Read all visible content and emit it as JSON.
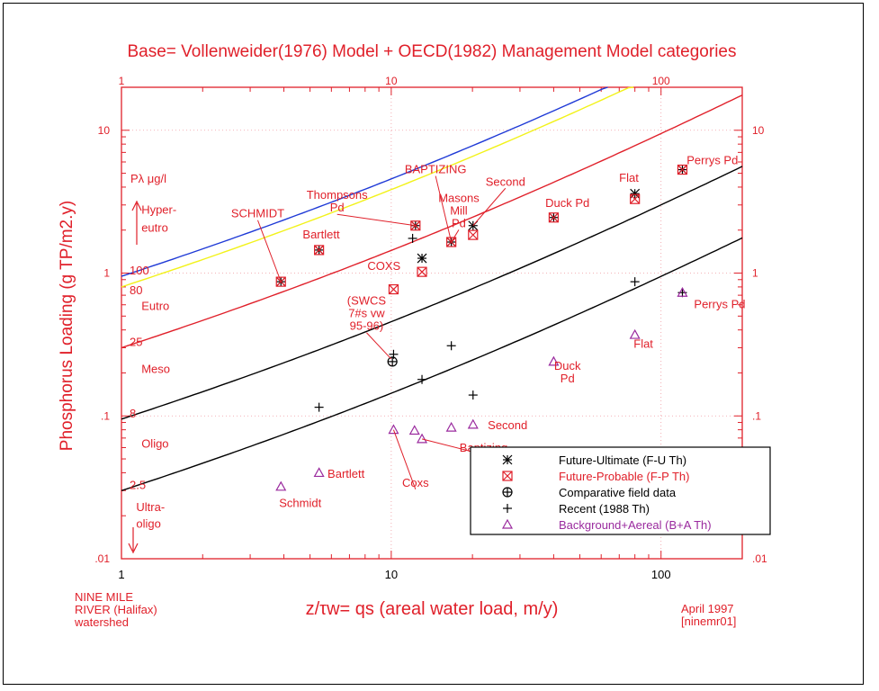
{
  "chart_data": {
    "type": "scatter",
    "title": "Base= Vollenweider(1976) Model + OECD(1982) Management Model categories",
    "xlabel": "z/τw= qs (areal water load, m/y)",
    "ylabel": "Phosphorus Loading (g TP/m2.y)",
    "xlim": [
      1,
      200
    ],
    "ylim": [
      0.01,
      20
    ],
    "x_scale": "log",
    "y_scale": "log",
    "x_ticks": [
      "1",
      "10",
      "100"
    ],
    "x_ticks_top": [
      "1",
      "10",
      "100"
    ],
    "y_ticks": [
      ".01",
      ".1",
      "1",
      "10"
    ],
    "y_ticks_right": [
      ".01",
      ".1",
      "1",
      "10"
    ],
    "curves": [
      {
        "name": "100",
        "color": "#1f3ad6",
        "p_ug_l": 100,
        "label_value": 0.95
      },
      {
        "name": "80",
        "color": "#f2f21a",
        "p_ug_l": 80,
        "label_value": 0.8
      },
      {
        "name": "25",
        "color": "#e0202a",
        "p_ug_l": 25,
        "label_value": 0.3
      },
      {
        "name": "8",
        "color": "#000000",
        "p_ug_l": 8,
        "label_value": 0.095
      },
      {
        "name": "2.5",
        "color": "#000000",
        "p_ug_l": 2.5,
        "label_value": 0.03
      }
    ],
    "trophic_labels": [
      {
        "text": "Hyper-",
        "x": 1.15,
        "y": 2.6
      },
      {
        "text": "eutro",
        "x": 1.15,
        "y": 1.95
      },
      {
        "text": "Eutro",
        "x": 1.15,
        "y": 0.55
      },
      {
        "text": "Meso",
        "x": 1.15,
        "y": 0.2
      },
      {
        "text": "Oligo",
        "x": 1.15,
        "y": 0.06
      },
      {
        "text": "Ultra-",
        "x": 1.1,
        "y": 0.0215
      },
      {
        "text": "oligo",
        "x": 1.1,
        "y": 0.0165
      }
    ],
    "concentration_header": "Pλ μg/l",
    "series": [
      {
        "name": "Future-Ultimate (F-U Th)",
        "marker": "asterisk",
        "color": "#000000",
        "points": [
          {
            "x": 5.4,
            "y": 1.45
          },
          {
            "x": 12.3,
            "y": 2.15
          },
          {
            "x": 13.0,
            "y": 1.27
          },
          {
            "x": 16.7,
            "y": 1.65
          },
          {
            "x": 20.1,
            "y": 2.15
          },
          {
            "x": 40,
            "y": 2.45
          },
          {
            "x": 80,
            "y": 3.6
          },
          {
            "x": 120,
            "y": 5.3
          },
          {
            "x": 3.9,
            "y": 0.87
          }
        ]
      },
      {
        "name": "Future-Probable (F-P Th)",
        "marker": "boxed-x",
        "color": "#e0202a",
        "points": [
          {
            "x": 3.9,
            "y": 0.87
          },
          {
            "x": 5.4,
            "y": 1.45
          },
          {
            "x": 10.2,
            "y": 0.77
          },
          {
            "x": 12.3,
            "y": 2.15
          },
          {
            "x": 13.0,
            "y": 1.02
          },
          {
            "x": 16.7,
            "y": 1.65
          },
          {
            "x": 20.1,
            "y": 1.85
          },
          {
            "x": 40,
            "y": 2.45
          },
          {
            "x": 80,
            "y": 3.3
          },
          {
            "x": 120,
            "y": 5.3
          }
        ]
      },
      {
        "name": "Comparative field data",
        "marker": "circle-plus",
        "color": "#000000",
        "points": [
          {
            "x": 10.1,
            "y": 0.24
          }
        ]
      },
      {
        "name": "Recent (1988 Th)",
        "marker": "plus",
        "color": "#000000",
        "points": [
          {
            "x": 5.4,
            "y": 0.115
          },
          {
            "x": 10.2,
            "y": 0.27
          },
          {
            "x": 12.0,
            "y": 1.75
          },
          {
            "x": 13.0,
            "y": 0.18
          },
          {
            "x": 16.7,
            "y": 0.31
          },
          {
            "x": 20.1,
            "y": 0.14
          },
          {
            "x": 80,
            "y": 0.87
          },
          {
            "x": 120,
            "y": 0.73
          }
        ]
      },
      {
        "name": "Background+Aereal (B+A Th)",
        "marker": "triangle",
        "color": "#9a2a9e",
        "points": [
          {
            "x": 3.9,
            "y": 0.032
          },
          {
            "x": 5.4,
            "y": 0.04
          },
          {
            "x": 10.2,
            "y": 0.08
          },
          {
            "x": 12.2,
            "y": 0.079
          },
          {
            "x": 13.0,
            "y": 0.069
          },
          {
            "x": 16.7,
            "y": 0.083
          },
          {
            "x": 20.1,
            "y": 0.087
          },
          {
            "x": 40,
            "y": 0.24
          },
          {
            "x": 80,
            "y": 0.37
          },
          {
            "x": 120,
            "y": 0.73
          }
        ]
      }
    ],
    "annotations": [
      {
        "lines": [
          "BAPTIZING"
        ],
        "x": 14.6,
        "y": 5.0,
        "to": [
          16.7,
          1.65
        ]
      },
      {
        "lines": [
          "Thompsons",
          "Pd"
        ],
        "x": 6.3,
        "y": 3.3,
        "to": [
          12.3,
          2.15
        ]
      },
      {
        "lines": [
          "SCHMIDT"
        ],
        "x": 3.2,
        "y": 2.45,
        "to": [
          3.9,
          0.87
        ]
      },
      {
        "lines": [
          "Bartlett"
        ],
        "x": 5.5,
        "y": 1.75
      },
      {
        "lines": [
          "Masons",
          "Mill",
          "Pd"
        ],
        "x": 17.8,
        "y": 3.15,
        "to": [
          16.7,
          1.65
        ]
      },
      {
        "lines": [
          "Second"
        ],
        "x": 26.5,
        "y": 4.1,
        "to": [
          20.1,
          2.15
        ]
      },
      {
        "lines": [
          "Duck Pd"
        ],
        "x": 45,
        "y": 2.9
      },
      {
        "lines": [
          "Flat"
        ],
        "x": 76,
        "y": 4.35
      },
      {
        "lines": [
          "Perrys Pd"
        ],
        "x": 155,
        "y": 5.8
      },
      {
        "lines": [
          "COXS"
        ],
        "x": 9.4,
        "y": 1.05
      },
      {
        "lines": [
          "(SWCS",
          "7#s vw",
          "95-96)"
        ],
        "x": 8.1,
        "y": 0.6,
        "to": [
          10.0,
          0.25
        ]
      },
      {
        "lines": [
          "Eutro",
          "Perrys Pd"
        ],
        "x": 165,
        "y": 0.57,
        "skipFirst": true
      },
      {
        "lines": [
          "Flat"
        ],
        "x": 86,
        "y": 0.3
      },
      {
        "lines": [
          "Duck",
          "Pd"
        ],
        "x": 45,
        "y": 0.21
      },
      {
        "lines": [
          "Second"
        ],
        "x": 27,
        "y": 0.081
      },
      {
        "lines": [
          "Baptizing"
        ],
        "x": 22,
        "y": 0.056,
        "to": [
          13.0,
          0.069
        ]
      },
      {
        "lines": [
          "Coxs"
        ],
        "x": 12.3,
        "y": 0.032,
        "to": [
          10.2,
          0.08
        ]
      },
      {
        "lines": [
          "Bartlett"
        ],
        "x": 6.8,
        "y": 0.037
      },
      {
        "lines": [
          "Schmidt"
        ],
        "x": 4.6,
        "y": 0.023
      }
    ]
  },
  "footer": {
    "left_line1": "NINE MILE",
    "left_line2": "RIVER (Halifax)",
    "left_line3": "watershed",
    "right_line1": "April 1997",
    "right_line2": "[ninemr01]"
  },
  "legend": {
    "items": [
      "Future-Ultimate (F-U Th)",
      "Future-Probable (F-P Th)",
      "Comparative field data",
      "Recent (1988 Th)",
      "Background+Aereal (B+A Th)"
    ]
  },
  "colors": {
    "red": "#e0202a",
    "blue": "#1f3ad6",
    "yellow": "#f2f21a",
    "purple": "#9a2a9e",
    "black": "#000000"
  }
}
